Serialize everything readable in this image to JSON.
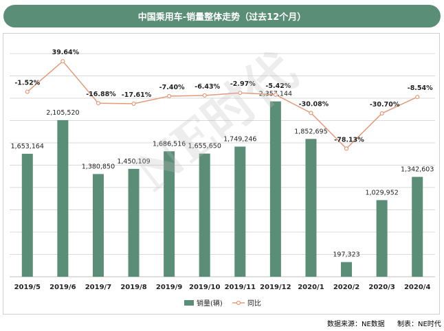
{
  "title": "中国乘用车-销量整体走势（过去12个月）",
  "watermark": "NE时代",
  "footer": {
    "source": "数据来源：NE数据",
    "maker": "制表：NE时代"
  },
  "colors": {
    "bar": "#5a8e76",
    "line": "#e49a78",
    "title_bg": "#5a8e76",
    "grid": "#d9d9d9"
  },
  "chart_data": {
    "type": "bar",
    "categories": [
      "2019/5",
      "2019/6",
      "2019/7",
      "2019/8",
      "2019/9",
      "2019/10",
      "2019/11",
      "2019/12",
      "2020/1",
      "2020/2",
      "2020/3",
      "2020/4"
    ],
    "series": [
      {
        "name": "销量(辆)",
        "type": "bar",
        "axis": "left",
        "values": [
          1653164,
          2105520,
          1380850,
          1450109,
          1686516,
          1655650,
          1749246,
          2357144,
          1852695,
          197323,
          1029952,
          1342603
        ],
        "labels": [
          "1,653,164",
          "2,105,520",
          "1,380,850",
          "1,450,109",
          "1,686,516",
          "1,655,650",
          "1,749,246",
          "2,357,144",
          "1,852,695",
          "197,323",
          "1,029,952",
          "1,342,603"
        ]
      },
      {
        "name": "同比",
        "type": "line",
        "axis": "right",
        "values": [
          -1.52,
          39.64,
          -16.88,
          -17.61,
          -7.4,
          -6.43,
          -2.97,
          -5.42,
          -30.08,
          -78.13,
          -30.7,
          -8.54
        ],
        "labels": [
          "-1.52%",
          "39.64%",
          "-16.88%",
          "-17.61%",
          "-7.40%",
          "-6.43%",
          "-2.97%",
          "-5.42%",
          "-30.08%",
          "-78.13%",
          "-30.70%",
          "-8.54%"
        ]
      }
    ],
    "legend": "bottom",
    "grid": true
  }
}
